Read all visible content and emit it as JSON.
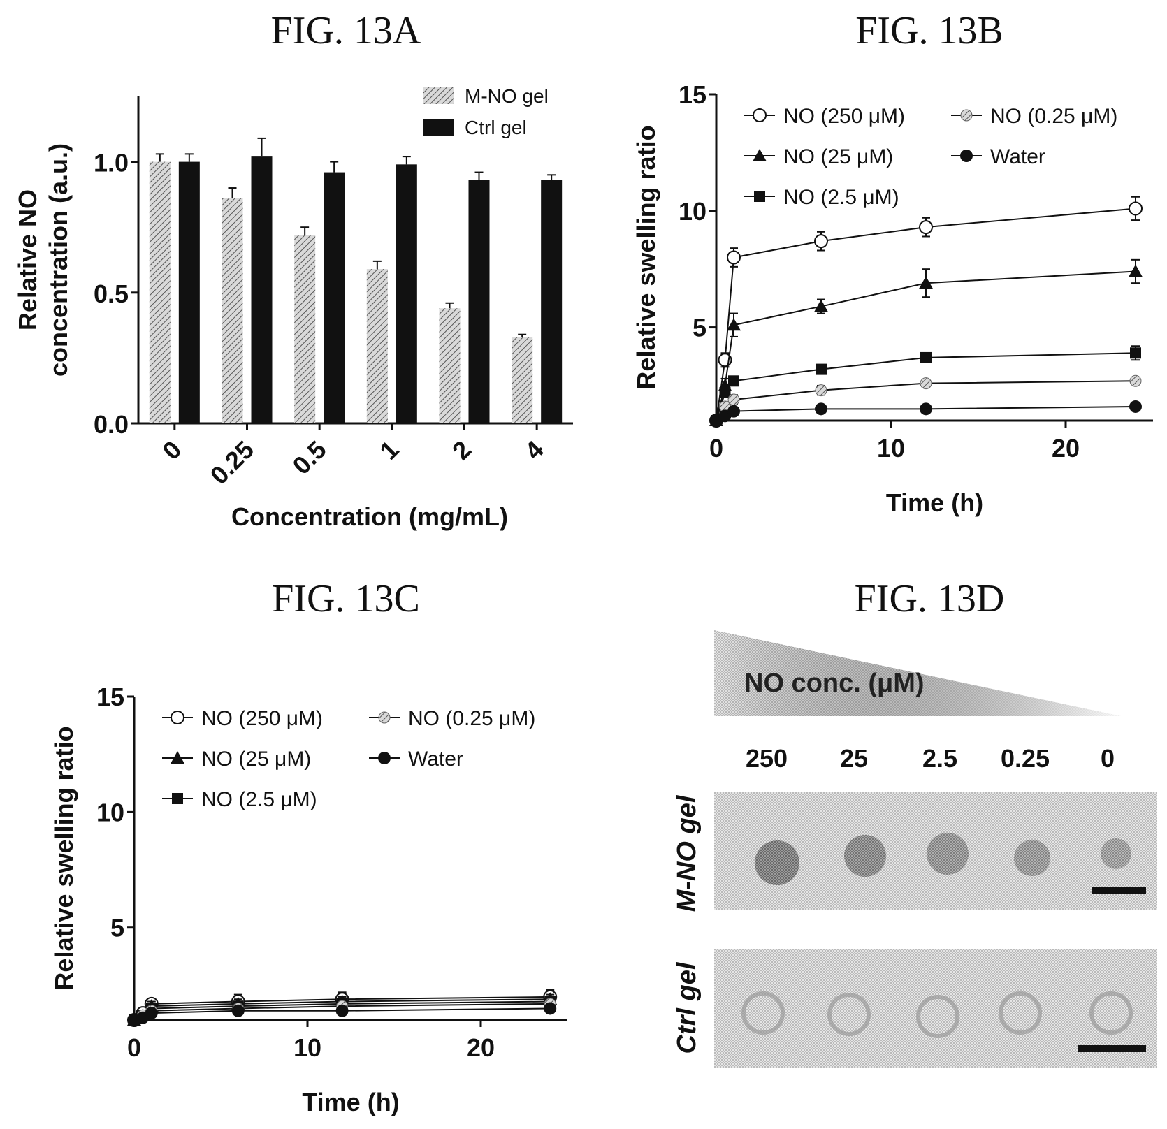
{
  "figures": {
    "a_title": "FIG. 13A",
    "b_title": "FIG. 13B",
    "c_title": "FIG. 13C",
    "d_title": "FIG. 13D"
  },
  "chart_data": [
    {
      "id": "13A",
      "type": "bar",
      "categories": [
        "0",
        "0.25",
        "0.5",
        "1",
        "2",
        "4"
      ],
      "series": [
        {
          "name": "M-NO gel",
          "values": [
            1.0,
            0.86,
            0.72,
            0.59,
            0.44,
            0.33
          ],
          "errors": [
            0.03,
            0.04,
            0.03,
            0.03,
            0.02,
            0.01
          ],
          "pattern": "hatched"
        },
        {
          "name": "Ctrl gel",
          "values": [
            1.0,
            1.02,
            0.96,
            0.99,
            0.93,
            0.93
          ],
          "errors": [
            0.03,
            0.07,
            0.04,
            0.03,
            0.03,
            0.02
          ],
          "pattern": "solid"
        }
      ],
      "xlabel": "Concentration (mg/mL)",
      "ylabel_lines": [
        "Relative NO",
        "concentration (a.u.)"
      ],
      "ylim": [
        0,
        1.25
      ],
      "yticks": [
        "0.0",
        "0.5",
        "1.0"
      ],
      "ytick_values": [
        0,
        0.5,
        1.0
      ],
      "legend_position": "top-right"
    },
    {
      "id": "13B",
      "type": "line",
      "x": [
        0,
        0.5,
        1,
        6,
        12,
        24
      ],
      "series": [
        {
          "name": "NO (250 μM)",
          "marker": "open-circle",
          "values": [
            1.0,
            3.6,
            8.0,
            8.7,
            9.3,
            10.1
          ],
          "errors": [
            0,
            0.3,
            0.4,
            0.4,
            0.4,
            0.5
          ]
        },
        {
          "name": "NO (25 μM)",
          "marker": "triangle",
          "values": [
            1.0,
            2.5,
            5.1,
            5.9,
            6.9,
            7.4
          ],
          "errors": [
            0,
            0.3,
            0.5,
            0.3,
            0.6,
            0.5
          ]
        },
        {
          "name": "NO (2.5 μM)",
          "marker": "square",
          "values": [
            1.0,
            2.2,
            2.7,
            3.2,
            3.7,
            3.9
          ],
          "errors": [
            0,
            0.2,
            0.2,
            0.2,
            0.2,
            0.3
          ]
        },
        {
          "name": "NO (0.25 μM)",
          "marker": "hatched-circle",
          "values": [
            1.0,
            1.6,
            1.9,
            2.3,
            2.6,
            2.7
          ],
          "errors": [
            0,
            0.2,
            0.2,
            0.2,
            0.1,
            0.1
          ]
        },
        {
          "name": "Water",
          "marker": "filled-circle",
          "values": [
            1.0,
            1.2,
            1.4,
            1.5,
            1.5,
            1.6
          ],
          "errors": [
            0,
            0.05,
            0.05,
            0.05,
            0.05,
            0.05
          ]
        }
      ],
      "legend_order": [
        "NO (250 μM)",
        "NO (0.25 μM)",
        "NO (25 μM)",
        "Water",
        "NO (2.5 μM)"
      ],
      "xlabel": "Time (h)",
      "ylabel": "Relative swelling ratio",
      "xlim": [
        0,
        25
      ],
      "ylim": [
        1,
        15
      ],
      "xticks": [
        "0",
        "10",
        "20"
      ],
      "xtick_values": [
        0,
        10,
        20
      ],
      "yticks": [
        "5",
        "10",
        "15"
      ],
      "ytick_values": [
        5,
        10,
        15
      ],
      "legend_position": "top-left"
    },
    {
      "id": "13C",
      "type": "line",
      "x": [
        0,
        0.5,
        1,
        6,
        12,
        24
      ],
      "series": [
        {
          "name": "NO (250 μM)",
          "marker": "open-circle",
          "values": [
            1.0,
            1.3,
            1.7,
            1.8,
            1.9,
            2.0
          ],
          "errors": [
            0,
            0.1,
            0.2,
            0.3,
            0.3,
            0.3
          ]
        },
        {
          "name": "NO (25 μM)",
          "marker": "triangle",
          "values": [
            1.0,
            1.2,
            1.6,
            1.7,
            1.8,
            1.9
          ],
          "errors": [
            0,
            0.1,
            0.2,
            0.2,
            0.2,
            0.2
          ]
        },
        {
          "name": "NO (2.5 μM)",
          "marker": "square",
          "values": [
            1.0,
            1.2,
            1.5,
            1.6,
            1.7,
            1.8
          ],
          "errors": [
            0,
            0.1,
            0.1,
            0.1,
            0.1,
            0.1
          ]
        },
        {
          "name": "NO (0.25 μM)",
          "marker": "hatched-circle",
          "values": [
            1.0,
            1.2,
            1.4,
            1.5,
            1.6,
            1.7
          ],
          "errors": [
            0,
            0.1,
            0.1,
            0.1,
            0.1,
            0.1
          ]
        },
        {
          "name": "Water",
          "marker": "filled-circle",
          "values": [
            1.0,
            1.1,
            1.3,
            1.4,
            1.4,
            1.5
          ],
          "errors": [
            0,
            0.05,
            0.05,
            0.05,
            0.05,
            0.05
          ]
        }
      ],
      "legend_order": [
        "NO (250 μM)",
        "NO (0.25 μM)",
        "NO (25 μM)",
        "Water",
        "NO (2.5 μM)"
      ],
      "xlabel": "Time (h)",
      "ylabel": "Relative swelling ratio",
      "xlim": [
        0,
        25
      ],
      "ylim": [
        1,
        15
      ],
      "xticks": [
        "0",
        "10",
        "20"
      ],
      "xtick_values": [
        0,
        10,
        20
      ],
      "yticks": [
        "5",
        "10",
        "15"
      ],
      "ytick_values": [
        5,
        10,
        15
      ],
      "legend_position": "top-left"
    }
  ],
  "panel_d": {
    "gradient_label": "NO conc. (μM)",
    "concentrations": [
      "250",
      "25",
      "2.5",
      "0.25",
      "0"
    ],
    "rows": [
      "M-NO gel",
      "Ctrl gel"
    ]
  }
}
